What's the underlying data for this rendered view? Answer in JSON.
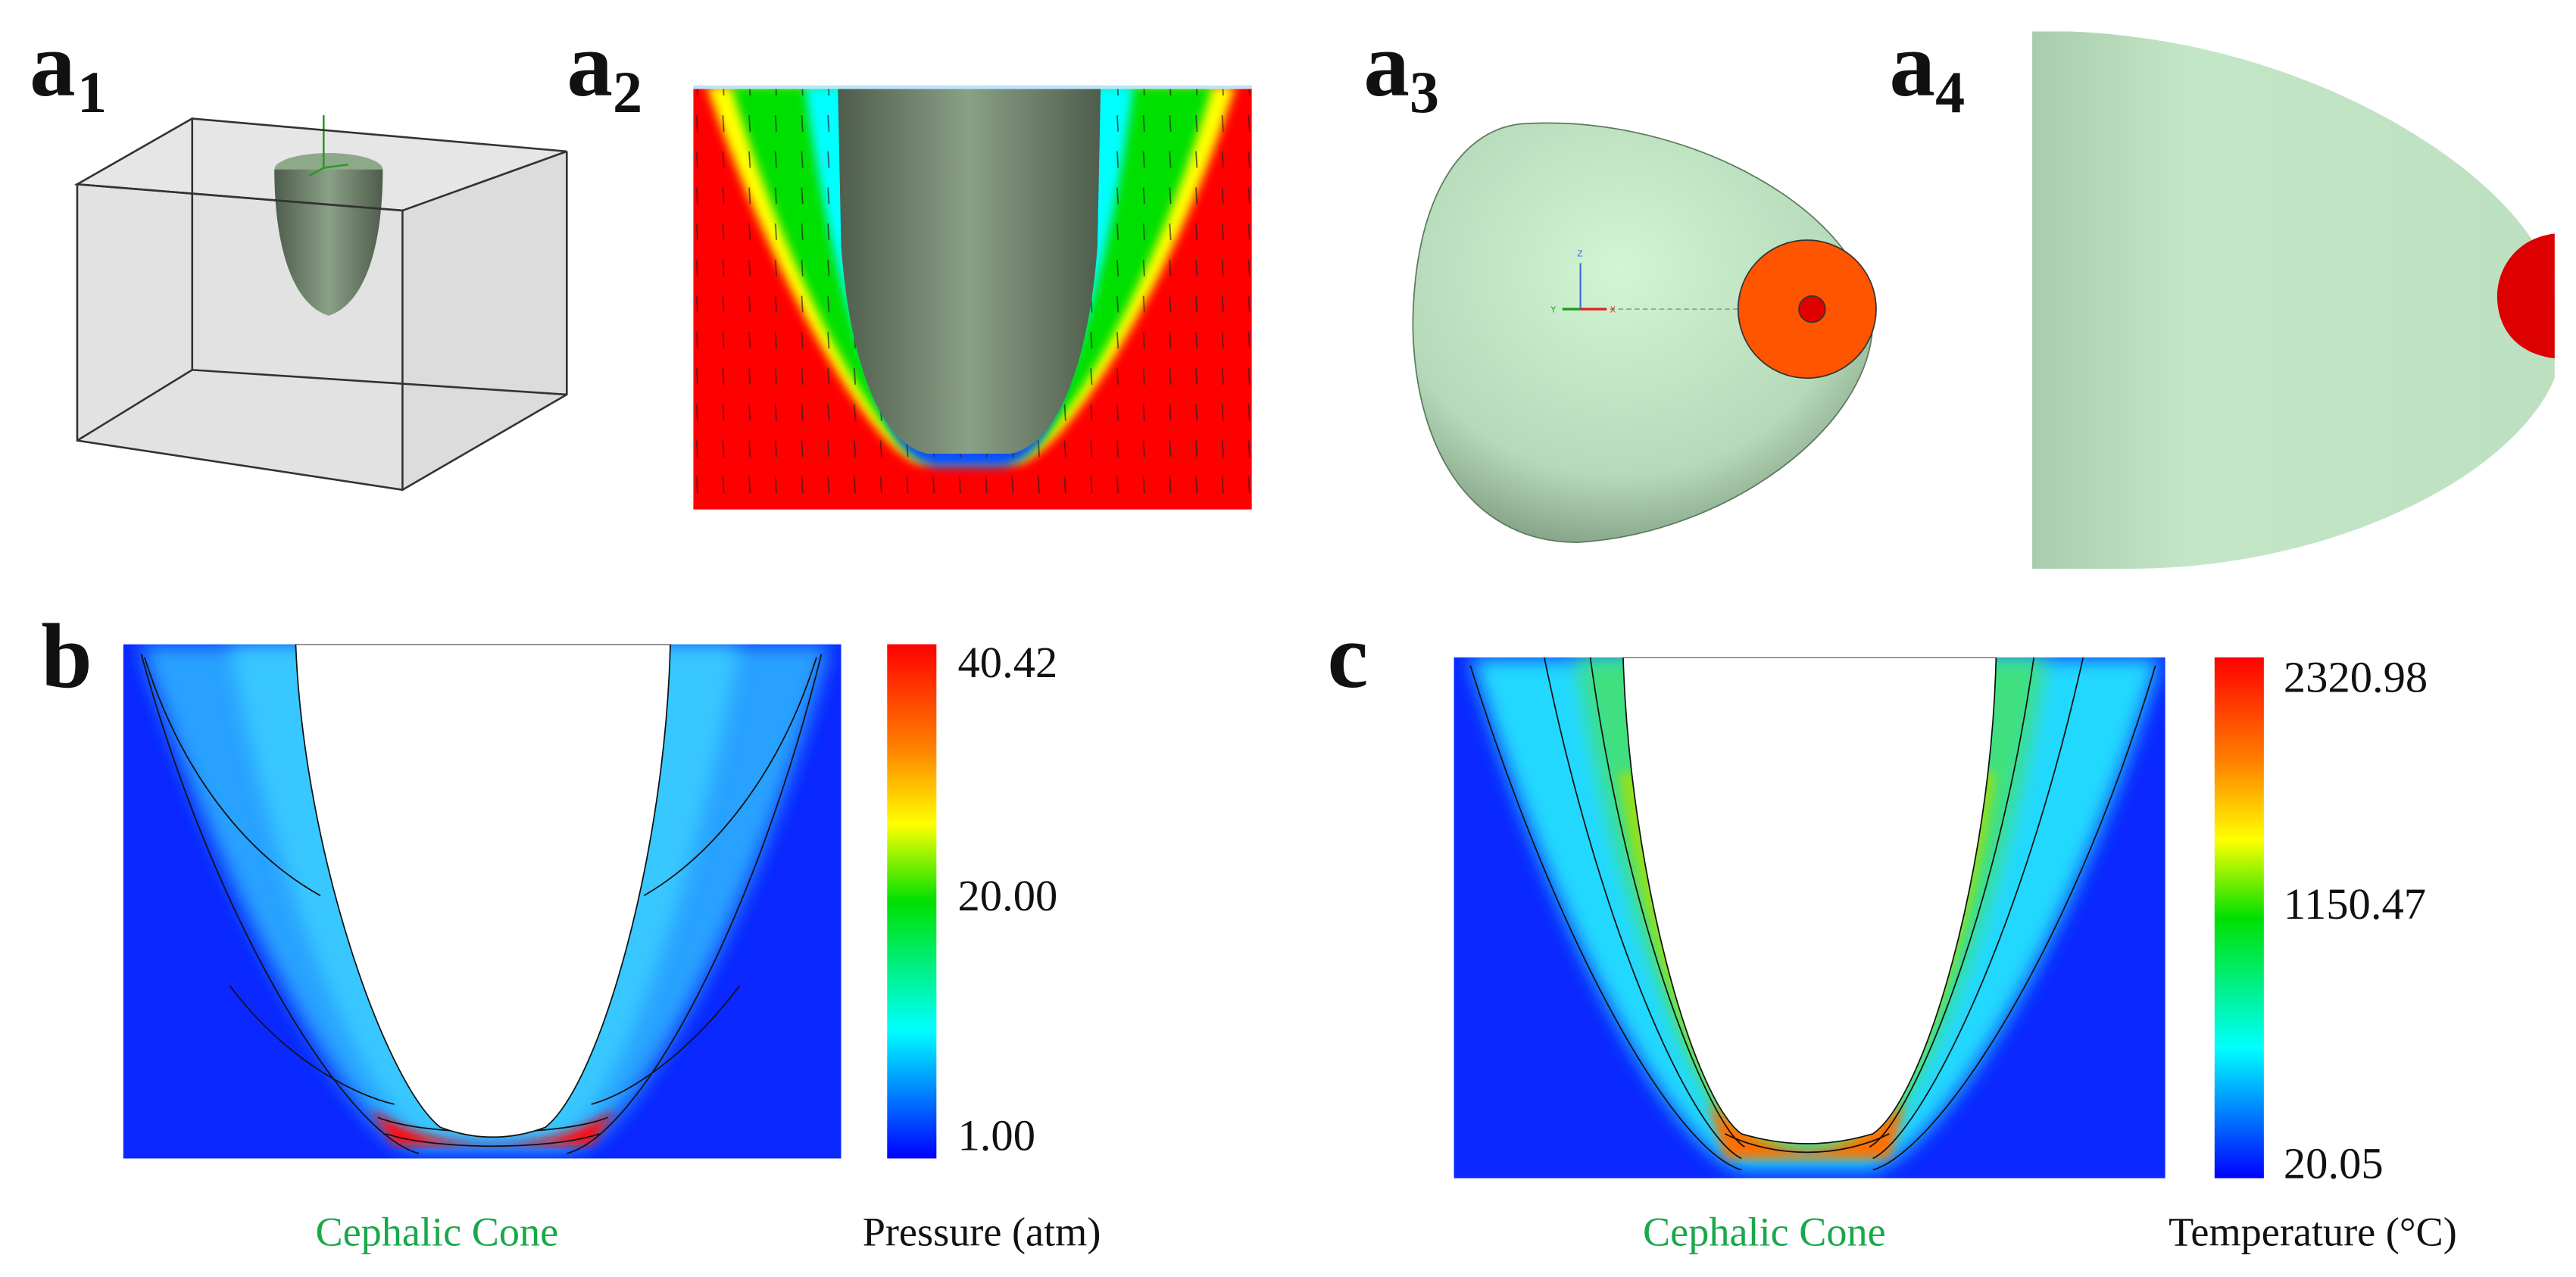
{
  "panels": {
    "a1": {
      "letter": "a",
      "sub": "1"
    },
    "a2": {
      "letter": "a",
      "sub": "2"
    },
    "a3": {
      "letter": "a",
      "sub": "3",
      "axis_labels": {
        "y": "Y",
        "x": "X",
        "z": "Z"
      }
    },
    "a4": {
      "letter": "a",
      "sub": "4"
    },
    "b": {
      "letter": "b",
      "caption": "Cephalic Cone",
      "colorbar_title": "Pressure (atm)",
      "colorbar_ticks": [
        "40.42",
        "20.00",
        "1.00"
      ]
    },
    "c": {
      "letter": "c",
      "caption": "Cephalic Cone",
      "colorbar_title": "Temperature (°C)",
      "colorbar_ticks": [
        "2320.98",
        "1150.47",
        "20.05"
      ]
    }
  },
  "colors": {
    "caption_green": "#1aa84a",
    "colormap": [
      "#ff0000",
      "#ff8000",
      "#ffff00",
      "#00e000",
      "#00ffff",
      "#0000ff"
    ],
    "cone_gray": "#6f826c",
    "shell_green": "#c2e6c6",
    "nozzle_orange": "#ff5500",
    "nozzle_red": "#e00000"
  }
}
